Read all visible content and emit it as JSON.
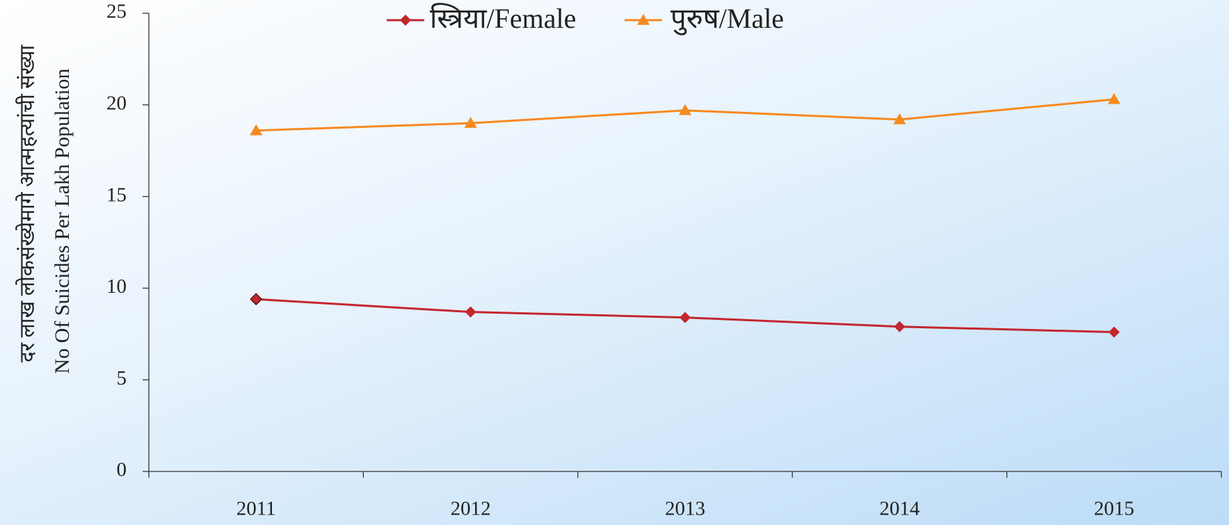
{
  "chart_data": {
    "type": "line",
    "y_label_lines": [
      "दर लाख लोकसंख्येमागे आत्महत्यांची संख्या",
      "No Of Suicides Per Lakh Population"
    ],
    "categories": [
      "2011",
      "2012",
      "2013",
      "2014",
      "2015"
    ],
    "series": [
      {
        "name": "स्त्रिया/Female",
        "color": "#c4262e",
        "marker": "diamond",
        "values": [
          9.4,
          8.7,
          8.4,
          7.9,
          7.6
        ]
      },
      {
        "name": "पुरुष/Male",
        "color": "#f7891f",
        "marker": "triangle",
        "values": [
          18.6,
          19.0,
          19.7,
          19.2,
          20.3
        ]
      }
    ],
    "ylim": [
      0,
      25
    ],
    "yticks": [
      0,
      5,
      10,
      15,
      20,
      25
    ],
    "legend": "top"
  }
}
